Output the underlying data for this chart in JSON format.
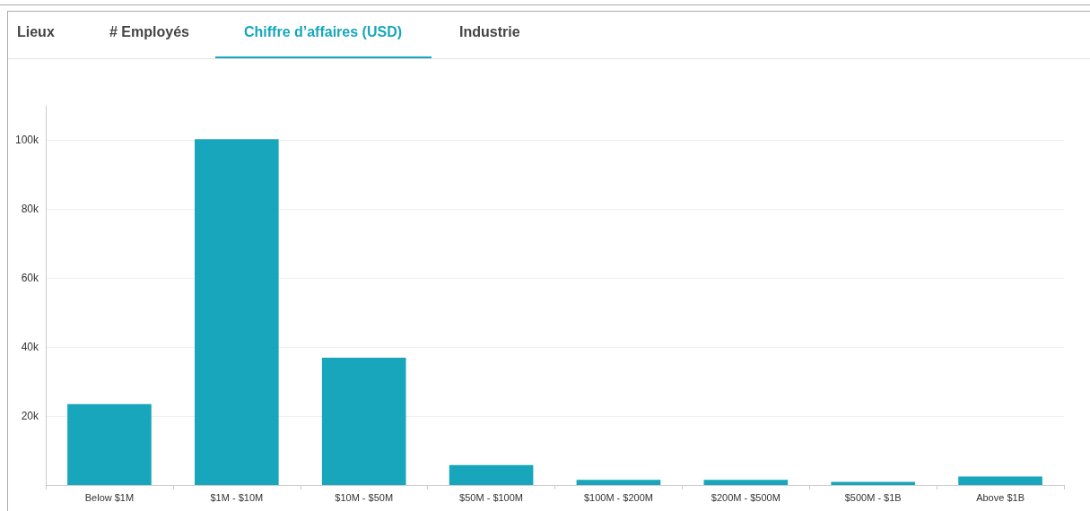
{
  "chart_data": {
    "type": "bar",
    "title": "Chiffre d’affaires (USD)",
    "annotations": [
      "Lieux",
      "# Employés",
      "Industrie"
    ],
    "categories": [
      "Below $1M",
      "$1M - $10M",
      "$10M - $50M",
      "$50M - $100M",
      "$100M - $200M",
      "$200M - $500M",
      "$500M - $1B",
      "Above $1B"
    ],
    "values": [
      23500,
      100300,
      36900,
      5800,
      1500,
      1500,
      900,
      2500
    ],
    "color": "#17a6bb",
    "ylim": [
      0,
      110000
    ],
    "yticks": [
      {
        "value": 20000,
        "label": "20k"
      },
      {
        "value": 40000,
        "label": "40k"
      },
      {
        "value": 60000,
        "label": "60k"
      },
      {
        "value": 80000,
        "label": "80k"
      },
      {
        "value": 100000,
        "label": "100k"
      }
    ],
    "grid": "y"
  }
}
